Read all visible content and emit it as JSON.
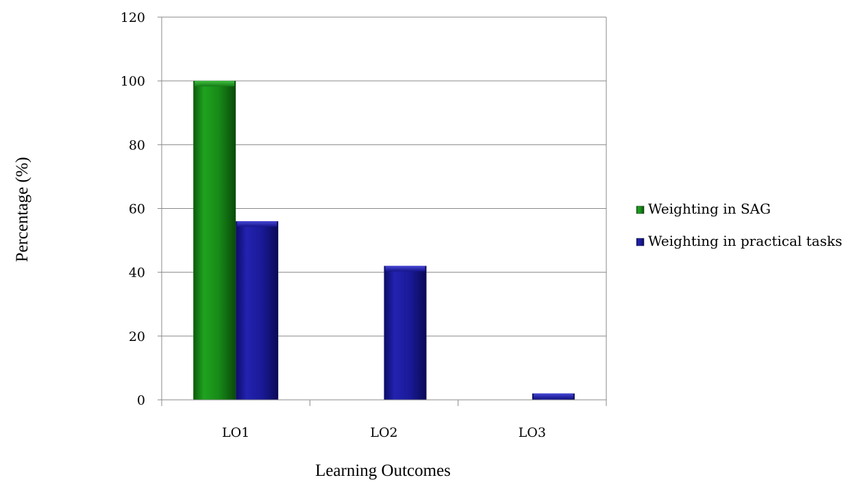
{
  "chart_data": {
    "type": "bar",
    "categories": [
      "LO1",
      "LO2",
      "LO3"
    ],
    "series": [
      {
        "name": "Weighting in SAG",
        "values": [
          100,
          0,
          0
        ],
        "color": "#1a8a1a"
      },
      {
        "name": "Weighting in practical tasks",
        "values": [
          56,
          42,
          2
        ],
        "color": "#1a1a9a"
      }
    ],
    "title": "",
    "xlabel": "Learning Outcomes",
    "ylabel": "Percentage (%)",
    "ylim": [
      0,
      120
    ],
    "yticks": [
      0,
      20,
      40,
      60,
      80,
      100,
      120
    ],
    "grid": true,
    "legend_position": "right"
  }
}
